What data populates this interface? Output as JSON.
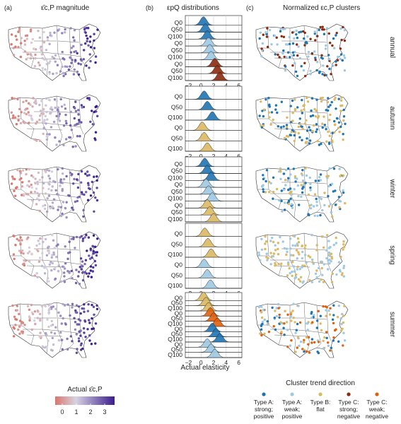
{
  "panels": {
    "a": {
      "tag": "(a)",
      "title": "ε̄c,P magnitude"
    },
    "b": {
      "tag": "(b)",
      "title": "εpQ distributions",
      "xlabel": "Actual elasticity",
      "ticks": [
        "−2",
        "0",
        "2",
        "4",
        "6"
      ]
    },
    "c": {
      "tag": "(c)",
      "title": "Normalized εc,P clusters"
    }
  },
  "rows": [
    {
      "season": "annual",
      "labels": [
        "Q0",
        "Q50",
        "Q100",
        "Q0",
        "Q50",
        "Q100",
        "Q0",
        "Q50",
        "Q100"
      ],
      "types": [
        "A1",
        "A1",
        "A1",
        "A2",
        "A2",
        "A2",
        "C1",
        "C1",
        "C1"
      ],
      "peaks": [
        0.4,
        0.7,
        1.0,
        1.2,
        1.4,
        1.6,
        2.2,
        2.6,
        3.0
      ]
    },
    {
      "season": "autumn",
      "labels": [
        "Q0",
        "Q50",
        "Q100",
        "Q0",
        "Q50",
        "Q100"
      ],
      "types": [
        "A1",
        "A1",
        "A1",
        "B",
        "B",
        "B"
      ],
      "peaks": [
        0.5,
        1.0,
        1.8,
        0.2,
        0.5,
        1.0
      ]
    },
    {
      "season": "winter",
      "labels": [
        "Q0",
        "Q50",
        "Q100",
        "Q0",
        "Q50",
        "Q100",
        "Q0",
        "Q50",
        "Q100"
      ],
      "types": [
        "A1",
        "A1",
        "A1",
        "A2",
        "A2",
        "A2",
        "B",
        "B",
        "B"
      ],
      "peaks": [
        0.6,
        1.0,
        1.6,
        0.8,
        1.2,
        1.8,
        1.0,
        1.4,
        2.0
      ]
    },
    {
      "season": "spring",
      "labels": [
        "Q0",
        "Q50",
        "Q100",
        "Q0",
        "Q50",
        "Q100"
      ],
      "types": [
        "B",
        "B",
        "B",
        "A2",
        "A2",
        "A2"
      ],
      "peaks": [
        0.6,
        1.1,
        1.6,
        0.5,
        1.0,
        1.5
      ]
    },
    {
      "season": "summer",
      "labels": [
        "Q0",
        "Q50",
        "Q100",
        "Q0",
        "Q50",
        "Q100",
        "Q0",
        "Q50",
        "Q100",
        "Q0",
        "Q50",
        "Q100"
      ],
      "types": [
        "B",
        "B",
        "B",
        "C2",
        "C2",
        "C2",
        "A1",
        "A1",
        "A1",
        "A2",
        "A2",
        "A2"
      ],
      "peaks": [
        0.4,
        0.8,
        1.2,
        1.5,
        2.0,
        2.6,
        1.8,
        2.4,
        3.0,
        1.0,
        1.6,
        2.2
      ]
    }
  ],
  "colorbar": {
    "title": "Actual ε̄c,P",
    "ticks": [
      "0",
      "1",
      "2",
      "3"
    ],
    "low": "#d9776b",
    "mid": "#d7d3e0",
    "high": "#3a1d8e"
  },
  "legend": {
    "title": "Cluster trend direction",
    "items": [
      {
        "key": "A1",
        "label1": "Type A:",
        "label2": "strong;",
        "label3": "positive",
        "color": "#1f74b4"
      },
      {
        "key": "A2",
        "label1": "Type A:",
        "label2": "weak;",
        "label3": "positive",
        "color": "#9ec9e2"
      },
      {
        "key": "B",
        "label1": "Type B:",
        "label2": "flat",
        "label3": "",
        "color": "#dcb862"
      },
      {
        "key": "C1",
        "label1": "Type C:",
        "label2": "strong;",
        "label3": "negative",
        "color": "#8b2a0e"
      },
      {
        "key": "C2",
        "label1": "Type C:",
        "label2": "weak;",
        "label3": "negative",
        "color": "#e05f0c"
      }
    ]
  },
  "chart_data": {
    "type": "area",
    "title": "εpQ distributions",
    "xlabel": "Actual elasticity",
    "xlim": [
      -2.5,
      6.5
    ],
    "x_ticks": [
      -2,
      0,
      2,
      4,
      6
    ],
    "series_rows": [
      "annual",
      "autumn",
      "winter",
      "spring",
      "summer"
    ]
  }
}
